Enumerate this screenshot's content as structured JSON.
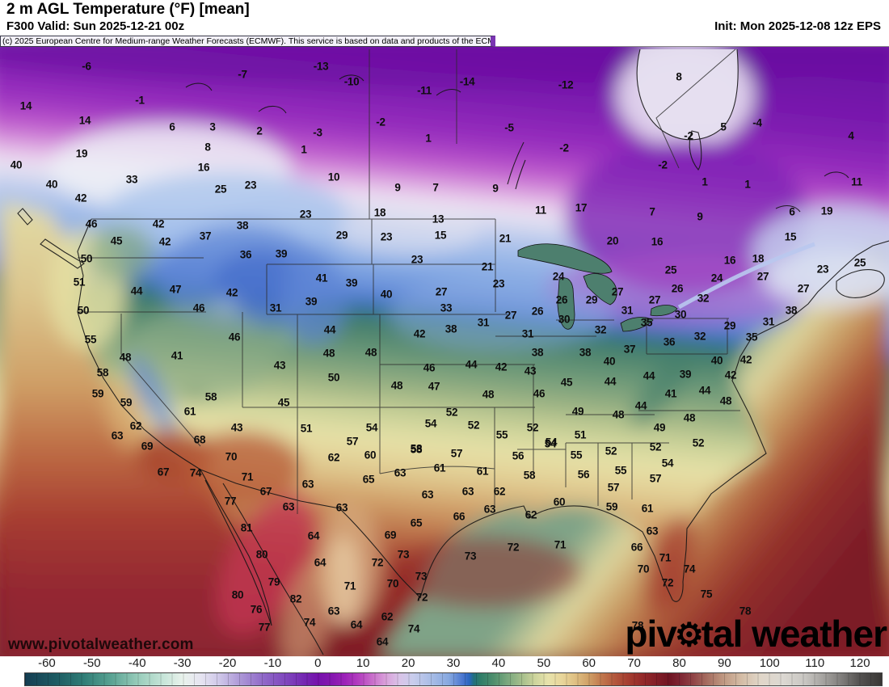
{
  "header": {
    "title": "2 m AGL Temperature (°F) [mean]",
    "valid": "F300 Valid: Sun 2025-12-21 00z",
    "init": "Init: Mon 2025-12-08 12z EPS",
    "copyright": "(c) 2025 European Centre for Medium-range Weather Forecasts (ECMWF). This service is based on data and products of the ECMWF."
  },
  "watermark": "www.pivotalweather.com",
  "logo": {
    "part1": "piv",
    "gear_icon": "⚙",
    "part2": "tal weather"
  },
  "chart_data": {
    "type": "heatmap",
    "title": "2 m AGL Temperature (°F) [mean]",
    "units": "°F",
    "model": "EPS",
    "forecast_hour": "F300",
    "colorbar": {
      "min": -65,
      "max": 125,
      "ticks": [
        -60,
        -50,
        -40,
        -30,
        -20,
        -10,
        0,
        10,
        20,
        30,
        40,
        50,
        60,
        70,
        80,
        90,
        100,
        110,
        120
      ],
      "stops": [
        [
          -65,
          "#143d52"
        ],
        [
          -58,
          "#1d5c63"
        ],
        [
          -52,
          "#2f7d76"
        ],
        [
          -46,
          "#58a292"
        ],
        [
          -40,
          "#97ccba"
        ],
        [
          -34,
          "#c9e6da"
        ],
        [
          -30,
          "#e9f2ec"
        ],
        [
          -26,
          "#e6e4f1"
        ],
        [
          -22,
          "#cfc8e9"
        ],
        [
          -17,
          "#ab95d6"
        ],
        [
          -12,
          "#8f68c8"
        ],
        [
          -7,
          "#7f46bd"
        ],
        [
          -3,
          "#7427b2"
        ],
        [
          0,
          "#7612ac"
        ],
        [
          3,
          "#8517b0"
        ],
        [
          6,
          "#9c22b8"
        ],
        [
          9,
          "#b43ec0"
        ],
        [
          12,
          "#c96ecb"
        ],
        [
          15,
          "#d9a0da"
        ],
        [
          18,
          "#d9c3e8"
        ],
        [
          21,
          "#c9cdec"
        ],
        [
          25,
          "#a9bde6"
        ],
        [
          29,
          "#86a8e0"
        ],
        [
          32,
          "#4b77d0"
        ],
        [
          33.5,
          "#2b66c0"
        ],
        [
          34.5,
          "#21707e"
        ],
        [
          36,
          "#2f7d68"
        ],
        [
          39,
          "#4f8f6d"
        ],
        [
          42,
          "#7aa87e"
        ],
        [
          45,
          "#a3bd8b"
        ],
        [
          48,
          "#ccd49c"
        ],
        [
          51,
          "#e7e2ab"
        ],
        [
          54,
          "#e8d69b"
        ],
        [
          57,
          "#dfc083"
        ],
        [
          60,
          "#cfa066"
        ],
        [
          63,
          "#c0764c"
        ],
        [
          66,
          "#b2563c"
        ],
        [
          69,
          "#a43c30"
        ],
        [
          72,
          "#93292a"
        ],
        [
          75,
          "#821e27"
        ],
        [
          78,
          "#6f1523"
        ],
        [
          80,
          "#7c2331"
        ],
        [
          83,
          "#8f4245"
        ],
        [
          86,
          "#a46a5e"
        ],
        [
          90,
          "#c09a83"
        ],
        [
          94,
          "#d4bda6"
        ],
        [
          98,
          "#e0d6c8"
        ],
        [
          103,
          "#dcd8d2"
        ],
        [
          108,
          "#c8c6c2"
        ],
        [
          112,
          "#a5a3a0"
        ],
        [
          116,
          "#807e7c"
        ],
        [
          120,
          "#555352"
        ],
        [
          125,
          "#383634"
        ]
      ]
    },
    "stations": [
      [
        "-6",
        107,
        82
      ],
      [
        "-7",
        300,
        92
      ],
      [
        "-1",
        173,
        124
      ],
      [
        "-13",
        397,
        82
      ],
      [
        "-10",
        435,
        101
      ],
      [
        "-11",
        525,
        112
      ],
      [
        "-14",
        578,
        101
      ],
      [
        "-12",
        700,
        105
      ],
      [
        "14",
        32,
        131
      ],
      [
        "14",
        105,
        149
      ],
      [
        "6",
        213,
        157
      ],
      [
        "3",
        263,
        157
      ],
      [
        "2",
        321,
        162
      ],
      [
        "-3",
        393,
        164
      ],
      [
        "-2",
        471,
        151
      ],
      [
        "1",
        530,
        171
      ],
      [
        "-5",
        630,
        158
      ],
      [
        "-2",
        698,
        183
      ],
      [
        "8",
        257,
        182
      ],
      [
        "19",
        101,
        190
      ],
      [
        "16",
        252,
        207
      ],
      [
        "1",
        376,
        185
      ],
      [
        "8",
        840,
        95
      ],
      [
        "5",
        895,
        157
      ],
      [
        "-4",
        937,
        152
      ],
      [
        "-2",
        852,
        168
      ],
      [
        "4",
        1053,
        168
      ],
      [
        "-2",
        820,
        204
      ],
      [
        "1",
        872,
        225
      ],
      [
        "1",
        925,
        228
      ],
      [
        "11",
        1060,
        225
      ],
      [
        "10",
        413,
        219
      ],
      [
        "9",
        492,
        232
      ],
      [
        "7",
        539,
        232
      ],
      [
        "9",
        613,
        233
      ],
      [
        "9",
        866,
        268
      ],
      [
        "6",
        980,
        262
      ],
      [
        "19",
        1023,
        261
      ],
      [
        "7",
        807,
        262
      ],
      [
        "15",
        978,
        293
      ],
      [
        "20",
        758,
        298
      ],
      [
        "16",
        813,
        299
      ],
      [
        "11",
        669,
        260
      ],
      [
        "17",
        719,
        257
      ],
      [
        "21",
        625,
        295
      ],
      [
        "23",
        310,
        229
      ],
      [
        "25",
        273,
        234
      ],
      [
        "33",
        163,
        222
      ],
      [
        "40",
        20,
        204
      ],
      [
        "40",
        64,
        228
      ],
      [
        "42",
        100,
        245
      ],
      [
        "46",
        113,
        277
      ],
      [
        "38",
        300,
        279
      ],
      [
        "23",
        378,
        265
      ],
      [
        "18",
        470,
        263
      ],
      [
        "13",
        542,
        271
      ],
      [
        "29",
        423,
        291
      ],
      [
        "23",
        478,
        293
      ],
      [
        "15",
        545,
        291
      ],
      [
        "23",
        516,
        321
      ],
      [
        "21",
        603,
        330
      ],
      [
        "23",
        617,
        351
      ],
      [
        "27",
        546,
        361
      ],
      [
        "24",
        691,
        342
      ],
      [
        "26",
        695,
        371
      ],
      [
        "29",
        732,
        371
      ],
      [
        "26",
        665,
        385
      ],
      [
        "27",
        632,
        390
      ],
      [
        "30",
        698,
        395
      ],
      [
        "31",
        598,
        399
      ],
      [
        "33",
        552,
        381
      ],
      [
        "38",
        558,
        407
      ],
      [
        "31",
        653,
        413
      ],
      [
        "16",
        903,
        322
      ],
      [
        "18",
        938,
        320
      ],
      [
        "23",
        1018,
        333
      ],
      [
        "25",
        1064,
        325
      ],
      [
        "27",
        944,
        342
      ],
      [
        "27",
        994,
        357
      ],
      [
        "24",
        887,
        344
      ],
      [
        "26",
        838,
        357
      ],
      [
        "32",
        870,
        369
      ],
      [
        "25",
        830,
        334
      ],
      [
        "27",
        764,
        361
      ],
      [
        "27",
        810,
        371
      ],
      [
        "31",
        776,
        384
      ],
      [
        "35",
        800,
        399
      ],
      [
        "30",
        842,
        389
      ],
      [
        "29",
        903,
        403
      ],
      [
        "32",
        866,
        416
      ],
      [
        "31",
        951,
        398
      ],
      [
        "38",
        979,
        384
      ],
      [
        "35",
        930,
        417
      ],
      [
        "36",
        828,
        423
      ],
      [
        "37",
        779,
        432
      ],
      [
        "32",
        743,
        408
      ],
      [
        "45",
        144,
        298
      ],
      [
        "42",
        196,
        277
      ],
      [
        "42",
        204,
        299
      ],
      [
        "37",
        254,
        292
      ],
      [
        "50",
        107,
        320
      ],
      [
        "36",
        304,
        315
      ],
      [
        "39",
        348,
        314
      ],
      [
        "31",
        341,
        381
      ],
      [
        "41",
        398,
        344
      ],
      [
        "39",
        435,
        350
      ],
      [
        "39",
        385,
        373
      ],
      [
        "40",
        478,
        364
      ],
      [
        "42",
        519,
        413
      ],
      [
        "44",
        408,
        408
      ],
      [
        "44",
        169,
        360
      ],
      [
        "47",
        217,
        358
      ],
      [
        "42",
        287,
        362
      ],
      [
        "46",
        246,
        381
      ],
      [
        "51",
        98,
        349
      ],
      [
        "50",
        103,
        384
      ],
      [
        "55",
        112,
        420
      ],
      [
        "46",
        290,
        417
      ],
      [
        "41",
        219,
        440
      ],
      [
        "48",
        155,
        442
      ],
      [
        "43",
        346,
        452
      ],
      [
        "48",
        407,
        437
      ],
      [
        "48",
        459,
        436
      ],
      [
        "38",
        665,
        436
      ],
      [
        "38",
        724,
        436
      ],
      [
        "46",
        531,
        455
      ],
      [
        "44",
        583,
        451
      ],
      [
        "42",
        620,
        454
      ],
      [
        "43",
        656,
        459
      ],
      [
        "45",
        701,
        473
      ],
      [
        "50",
        413,
        467
      ],
      [
        "48",
        491,
        477
      ],
      [
        "47",
        537,
        478
      ],
      [
        "48",
        604,
        488
      ],
      [
        "46",
        667,
        487
      ],
      [
        "40",
        754,
        447
      ],
      [
        "44",
        755,
        472
      ],
      [
        "44",
        803,
        465
      ],
      [
        "39",
        848,
        463
      ],
      [
        "40",
        887,
        446
      ],
      [
        "42",
        923,
        445
      ],
      [
        "42",
        904,
        464
      ],
      [
        "44",
        872,
        483
      ],
      [
        "41",
        830,
        487
      ],
      [
        "44",
        793,
        502
      ],
      [
        "48",
        765,
        513
      ],
      [
        "48",
        853,
        517
      ],
      [
        "48",
        898,
        496
      ],
      [
        "49",
        816,
        529
      ],
      [
        "58",
        127,
        461
      ],
      [
        "59",
        121,
        487
      ],
      [
        "59",
        156,
        498
      ],
      [
        "58",
        261,
        491
      ],
      [
        "45",
        351,
        498
      ],
      [
        "61",
        235,
        509
      ],
      [
        "62",
        168,
        527
      ],
      [
        "43",
        293,
        529
      ],
      [
        "63",
        145,
        539
      ],
      [
        "69",
        182,
        552
      ],
      [
        "68",
        247,
        544
      ],
      [
        "52",
        559,
        510
      ],
      [
        "54",
        533,
        524
      ],
      [
        "52",
        586,
        526
      ],
      [
        "55",
        621,
        538
      ],
      [
        "49",
        715,
        509
      ],
      [
        "51",
        718,
        538
      ],
      [
        "54",
        460,
        529
      ],
      [
        "57",
        436,
        546
      ],
      [
        "51",
        379,
        530
      ],
      [
        "52",
        659,
        529
      ],
      [
        "54",
        681,
        549
      ],
      [
        "58",
        515,
        556
      ],
      [
        "52",
        756,
        558
      ],
      [
        "52",
        811,
        553
      ],
      [
        "52",
        864,
        548
      ],
      [
        "54",
        826,
        573
      ],
      [
        "55",
        768,
        582
      ],
      [
        "57",
        759,
        603
      ],
      [
        "57",
        811,
        592
      ],
      [
        "59",
        757,
        627
      ],
      [
        "61",
        801,
        629
      ],
      [
        "63",
        807,
        657
      ],
      [
        "66",
        788,
        677
      ],
      [
        "71",
        823,
        690
      ],
      [
        "70",
        796,
        704
      ],
      [
        "72",
        826,
        721
      ],
      [
        "74",
        853,
        704
      ],
      [
        "75",
        874,
        735
      ],
      [
        "78",
        922,
        756
      ],
      [
        "78",
        789,
        774
      ],
      [
        "62",
        413,
        566
      ],
      [
        "60",
        458,
        563
      ],
      [
        "58",
        515,
        555
      ],
      [
        "57",
        565,
        561
      ],
      [
        "61",
        544,
        579
      ],
      [
        "61",
        597,
        583
      ],
      [
        "63",
        495,
        585
      ],
      [
        "65",
        456,
        593
      ],
      [
        "63",
        381,
        599
      ],
      [
        "63",
        529,
        612
      ],
      [
        "63",
        579,
        608
      ],
      [
        "62",
        618,
        608
      ],
      [
        "56",
        641,
        564
      ],
      [
        "58",
        655,
        588
      ],
      [
        "54",
        682,
        547
      ],
      [
        "55",
        713,
        563
      ],
      [
        "56",
        722,
        587
      ],
      [
        "63",
        423,
        628
      ],
      [
        "63",
        606,
        630
      ],
      [
        "66",
        568,
        639
      ],
      [
        "62",
        657,
        637
      ],
      [
        "60",
        692,
        621
      ],
      [
        "64",
        388,
        663
      ],
      [
        "65",
        515,
        647
      ],
      [
        "69",
        483,
        662
      ],
      [
        "64",
        396,
        696
      ],
      [
        "73",
        499,
        686
      ],
      [
        "72",
        467,
        696
      ],
      [
        "71",
        433,
        725
      ],
      [
        "70",
        486,
        722
      ],
      [
        "73",
        521,
        713
      ],
      [
        "73",
        582,
        688
      ],
      [
        "72",
        635,
        677
      ],
      [
        "71",
        693,
        674
      ],
      [
        "72",
        522,
        739
      ],
      [
        "63",
        413,
        756
      ],
      [
        "74",
        383,
        770
      ],
      [
        "64",
        441,
        773
      ],
      [
        "62",
        479,
        763
      ],
      [
        "74",
        512,
        778
      ],
      [
        "64",
        473,
        794
      ],
      [
        "67",
        202,
        584
      ],
      [
        "74",
        242,
        585
      ],
      [
        "70",
        286,
        565
      ],
      [
        "71",
        306,
        590
      ],
      [
        "67",
        329,
        608
      ],
      [
        "77",
        285,
        620
      ],
      [
        "63",
        357,
        627
      ],
      [
        "81",
        305,
        653
      ],
      [
        "80",
        324,
        686
      ],
      [
        "79",
        339,
        720
      ],
      [
        "82",
        366,
        741
      ],
      [
        "80",
        294,
        736
      ],
      [
        "76",
        317,
        754
      ],
      [
        "77",
        327,
        776
      ]
    ]
  }
}
